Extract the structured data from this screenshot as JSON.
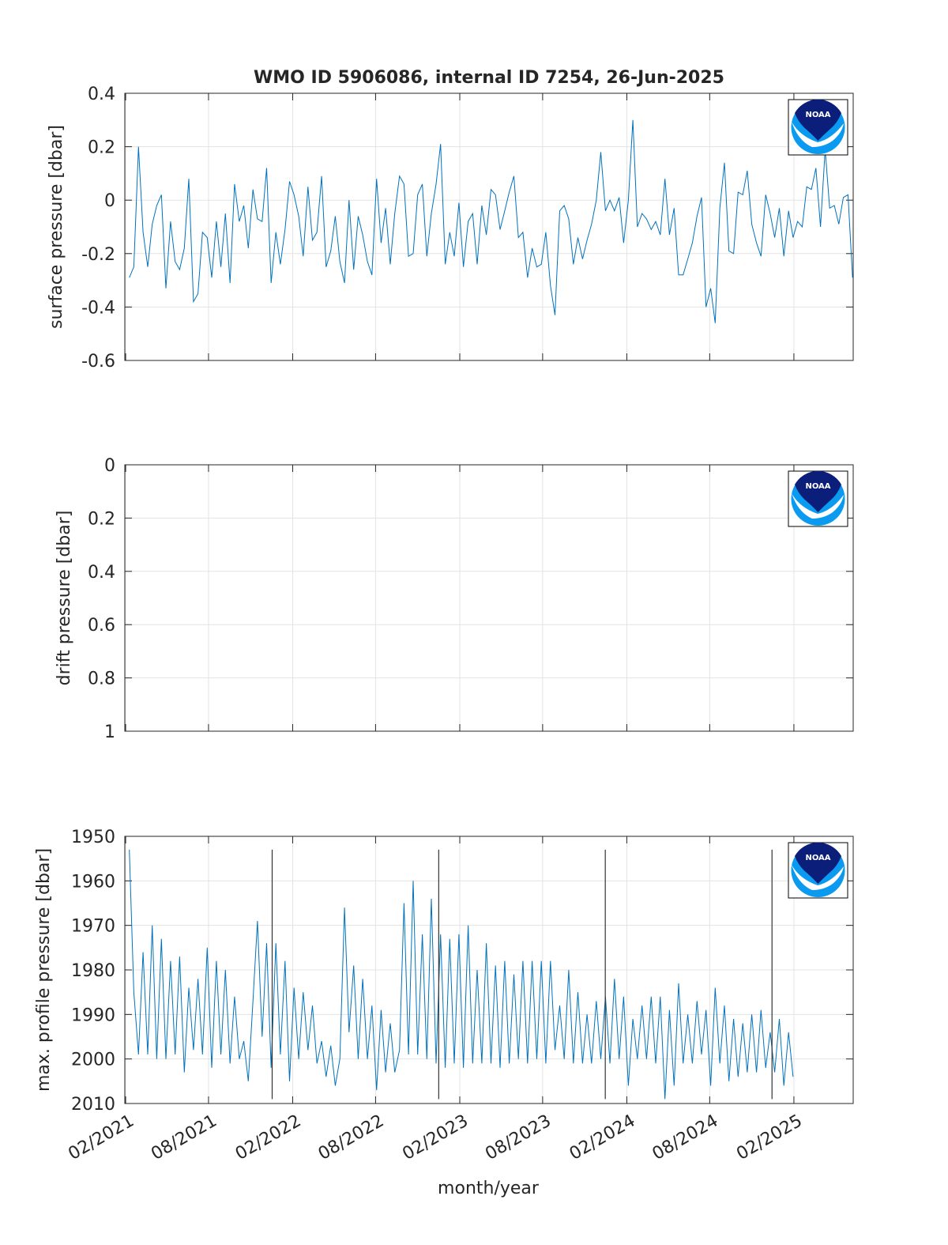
{
  "logo": "NOAA",
  "chart_data": [
    {
      "type": "line",
      "title": "WMO ID 5906086, internal ID 7254, 26-Jun-2025",
      "ylabel": "surface pressure [dbar]",
      "xlim": [
        2021.08,
        2025.44
      ],
      "xticks": [
        2021.085,
        2021.581,
        2022.085,
        2022.581,
        2023.085,
        2023.581,
        2024.085,
        2024.581,
        2025.085
      ],
      "ylim": [
        -0.6,
        0.4
      ],
      "yticks": [
        0.4,
        0.2,
        0,
        -0.2,
        -0.4,
        -0.6
      ],
      "y_reverse": false,
      "grid": true,
      "x": [
        2021.107,
        2021.134,
        2021.162,
        2021.189,
        2021.217,
        2021.244,
        2021.271,
        2021.299,
        2021.326,
        2021.354,
        2021.381,
        2021.408,
        2021.436,
        2021.463,
        2021.491,
        2021.518,
        2021.545,
        2021.573,
        2021.6,
        2021.628,
        2021.655,
        2021.682,
        2021.71,
        2021.737,
        2021.765,
        2021.792,
        2021.819,
        2021.847,
        2021.874,
        2021.902,
        2021.929,
        2021.956,
        2021.984,
        2022.011,
        2022.039,
        2022.066,
        2022.093,
        2022.121,
        2022.148,
        2022.176,
        2022.203,
        2022.23,
        2022.258,
        2022.285,
        2022.313,
        2022.34,
        2022.367,
        2022.395,
        2022.422,
        2022.45,
        2022.477,
        2022.504,
        2022.532,
        2022.559,
        2022.587,
        2022.614,
        2022.641,
        2022.669,
        2022.696,
        2022.724,
        2022.751,
        2022.778,
        2022.806,
        2022.833,
        2022.861,
        2022.888,
        2022.915,
        2022.943,
        2022.97,
        2022.998,
        2023.025,
        2023.052,
        2023.08,
        2023.107,
        2023.135,
        2023.162,
        2023.189,
        2023.217,
        2023.244,
        2023.272,
        2023.299,
        2023.326,
        2023.354,
        2023.381,
        2023.409,
        2023.436,
        2023.463,
        2023.491,
        2023.518,
        2023.546,
        2023.573,
        2023.6,
        2023.628,
        2023.655,
        2023.683,
        2023.71,
        2023.737,
        2023.765,
        2023.792,
        2023.82,
        2023.847,
        2023.874,
        2023.902,
        2023.929,
        2023.957,
        2023.984,
        2024.011,
        2024.039,
        2024.066,
        2024.094,
        2024.121,
        2024.148,
        2024.176,
        2024.203,
        2024.231,
        2024.258,
        2024.285,
        2024.313,
        2024.34,
        2024.368,
        2024.395,
        2024.422,
        2024.45,
        2024.477,
        2024.505,
        2024.532,
        2024.559,
        2024.587,
        2024.614,
        2024.642,
        2024.669,
        2024.696,
        2024.724,
        2024.751,
        2024.779,
        2024.806,
        2024.833,
        2024.861,
        2024.888,
        2024.916,
        2024.943,
        2024.97,
        2024.998,
        2025.025,
        2025.053,
        2025.08,
        2025.107,
        2025.135,
        2025.162,
        2025.19,
        2025.217,
        2025.244,
        2025.272,
        2025.299,
        2025.327,
        2025.354,
        2025.381,
        2025.409,
        2025.436
      ],
      "series": [
        {
          "color": "#0072bd",
          "values": [
            -0.29,
            -0.25,
            0.2,
            -0.12,
            -0.25,
            -0.09,
            -0.02,
            0.02,
            -0.33,
            -0.08,
            -0.23,
            -0.26,
            -0.18,
            0.08,
            -0.38,
            -0.35,
            -0.12,
            -0.14,
            -0.29,
            -0.08,
            -0.25,
            -0.05,
            -0.31,
            0.06,
            -0.08,
            -0.02,
            -0.18,
            0.04,
            -0.07,
            -0.08,
            0.12,
            -0.31,
            -0.12,
            -0.24,
            -0.11,
            0.07,
            0.02,
            -0.06,
            -0.21,
            0.05,
            -0.15,
            -0.12,
            0.09,
            -0.25,
            -0.19,
            -0.06,
            -0.23,
            -0.31,
            0.0,
            -0.26,
            -0.06,
            -0.13,
            -0.23,
            -0.28,
            0.08,
            -0.16,
            -0.03,
            -0.24,
            -0.05,
            0.09,
            0.06,
            -0.21,
            -0.2,
            0.02,
            0.06,
            -0.21,
            -0.05,
            0.06,
            0.21,
            -0.24,
            -0.12,
            -0.21,
            -0.01,
            -0.25,
            -0.08,
            -0.05,
            -0.24,
            -0.02,
            -0.13,
            0.04,
            0.02,
            -0.11,
            -0.04,
            0.03,
            0.09,
            -0.14,
            -0.12,
            -0.29,
            -0.18,
            -0.25,
            -0.24,
            -0.12,
            -0.32,
            -0.43,
            -0.04,
            -0.02,
            -0.07,
            -0.24,
            -0.14,
            -0.22,
            -0.15,
            -0.09,
            0.0,
            0.18,
            -0.04,
            0.0,
            -0.04,
            0.01,
            -0.16,
            0.0,
            0.3,
            -0.1,
            -0.05,
            -0.07,
            -0.11,
            -0.08,
            -0.13,
            0.08,
            -0.13,
            -0.03,
            -0.28,
            -0.28,
            -0.22,
            -0.16,
            -0.06,
            0.01,
            -0.4,
            -0.33,
            -0.46,
            -0.03,
            0.14,
            -0.19,
            -0.2,
            0.03,
            0.02,
            0.11,
            -0.09,
            -0.16,
            -0.21,
            0.02,
            -0.05,
            -0.14,
            -0.03,
            -0.21,
            -0.04,
            -0.14,
            -0.08,
            -0.1,
            0.05,
            0.04,
            0.12,
            -0.1,
            0.19,
            -0.03,
            -0.02,
            -0.09,
            0.01,
            0.02,
            -0.29
          ]
        }
      ]
    },
    {
      "type": "line",
      "ylabel": "drift pressure [dbar]",
      "xlim": [
        2021.08,
        2025.44
      ],
      "xticks": [
        2021.085,
        2021.581,
        2022.085,
        2022.581,
        2023.085,
        2023.581,
        2024.085,
        2024.581,
        2025.085
      ],
      "ylim": [
        0,
        1
      ],
      "yticks": [
        0,
        0.2,
        0.4,
        0.6,
        0.8,
        1
      ],
      "y_reverse": true,
      "grid": true
    },
    {
      "type": "line",
      "ylabel": "max. profile pressure [dbar]",
      "xlabel": "month/year",
      "xlim": [
        2021.08,
        2025.44
      ],
      "xticks": [
        {
          "value": 2021.085,
          "label": "02/2021"
        },
        {
          "value": 2021.581,
          "label": "08/2021"
        },
        {
          "value": 2022.085,
          "label": "02/2022"
        },
        {
          "value": 2022.581,
          "label": "08/2022"
        },
        {
          "value": 2023.085,
          "label": "02/2023"
        },
        {
          "value": 2023.581,
          "label": "08/2023"
        },
        {
          "value": 2024.085,
          "label": "02/2024"
        },
        {
          "value": 2024.581,
          "label": "08/2024"
        },
        {
          "value": 2025.085,
          "label": "02/2025"
        }
      ],
      "ylim": [
        1950,
        2010
      ],
      "yticks": [
        1950,
        1960,
        1970,
        1980,
        1990,
        2000,
        2010
      ],
      "y_reverse": true,
      "grid": true,
      "x": [
        2021.107,
        2021.134,
        2021.162,
        2021.189,
        2021.217,
        2021.244,
        2021.271,
        2021.299,
        2021.326,
        2021.354,
        2021.381,
        2021.408,
        2021.436,
        2021.463,
        2021.491,
        2021.518,
        2021.545,
        2021.573,
        2021.6,
        2021.628,
        2021.655,
        2021.682,
        2021.71,
        2021.737,
        2021.765,
        2021.792,
        2021.819,
        2021.847,
        2021.874,
        2021.902,
        2021.929,
        2021.956,
        2021.984,
        2022.011,
        2022.039,
        2022.066,
        2022.093,
        2022.121,
        2022.148,
        2022.176,
        2022.203,
        2022.23,
        2022.258,
        2022.285,
        2022.313,
        2022.34,
        2022.367,
        2022.395,
        2022.422,
        2022.45,
        2022.477,
        2022.504,
        2022.532,
        2022.559,
        2022.587,
        2022.614,
        2022.641,
        2022.669,
        2022.696,
        2022.724,
        2022.751,
        2022.778,
        2022.806,
        2022.833,
        2022.861,
        2022.888,
        2022.915,
        2022.943,
        2022.97,
        2022.998,
        2023.025,
        2023.052,
        2023.08,
        2023.107,
        2023.135,
        2023.162,
        2023.189,
        2023.217,
        2023.244,
        2023.272,
        2023.299,
        2023.326,
        2023.354,
        2023.381,
        2023.409,
        2023.436,
        2023.463,
        2023.491,
        2023.518,
        2023.546,
        2023.573,
        2023.6,
        2023.628,
        2023.655,
        2023.683,
        2023.71,
        2023.737,
        2023.765,
        2023.792,
        2023.82,
        2023.847,
        2023.874,
        2023.902,
        2023.929,
        2023.957,
        2023.984,
        2024.011,
        2024.039,
        2024.066,
        2024.094,
        2024.121,
        2024.148,
        2024.176,
        2024.203,
        2024.231,
        2024.258,
        2024.285,
        2024.313,
        2024.34,
        2024.368,
        2024.395,
        2024.422,
        2024.45,
        2024.477,
        2024.505,
        2024.532,
        2024.559,
        2024.587,
        2024.614,
        2024.642,
        2024.669,
        2024.696,
        2024.724,
        2024.751,
        2024.779,
        2024.806,
        2024.833,
        2024.861,
        2024.888,
        2024.916,
        2024.943,
        2024.97,
        2024.998,
        2025.025,
        2025.053,
        2025.08
      ],
      "series": [
        {
          "color": "#0072bd",
          "values": [
            1953,
            1985,
            1999,
            1976,
            1999,
            1970,
            2000,
            1973,
            2000,
            1978,
            1999,
            1977,
            2003,
            1984,
            1998,
            1982,
            1999,
            1975,
            2002,
            1978,
            1999,
            1980,
            2001,
            1986,
            2000,
            1996,
            2005,
            1987,
            1969,
            1995,
            1974,
            2002,
            1974,
            1999,
            1978,
            2005,
            1984,
            2000,
            1985,
            1998,
            1988,
            2001,
            1996,
            2004,
            1997,
            2006,
            2000,
            1966,
            1994,
            1979,
            2000,
            1982,
            2000,
            1988,
            2007,
            1989,
            2003,
            1992,
            2003,
            1998,
            1965,
            1999,
            1960,
            1999,
            1972,
            2000,
            1964,
            2001,
            1972,
            2002,
            1973,
            2001,
            1972,
            2002,
            1970,
            2001,
            1980,
            2001,
            1974,
            2001,
            1979,
            2002,
            1978,
            2001,
            1981,
            2000,
            1978,
            2001,
            1978,
            2000,
            1978,
            2001,
            1978,
            1998,
            1988,
            2000,
            1980,
            2001,
            1985,
            2001,
            1990,
            2001,
            1987,
            2000,
            1986,
            2001,
            1982,
            2000,
            1986,
            2006,
            1991,
            2000,
            1988,
            2000,
            1986,
            2001,
            1986,
            2009,
            1989,
            2006,
            1983,
            2001,
            1990,
            2001,
            1987,
            1999,
            1989,
            2006,
            1984,
            2001,
            1988,
            2005,
            1991,
            2004,
            1992,
            2003,
            1990,
            2003,
            1989,
            2002,
            1994,
            2003,
            1991,
            2006,
            1994,
            2004
          ]
        }
      ],
      "vlines": {
        "x": [
          2021.962,
          2022.959,
          2023.956,
          2024.954
        ],
        "range": [
          1953,
          2009
        ],
        "color": "#333333"
      }
    }
  ]
}
